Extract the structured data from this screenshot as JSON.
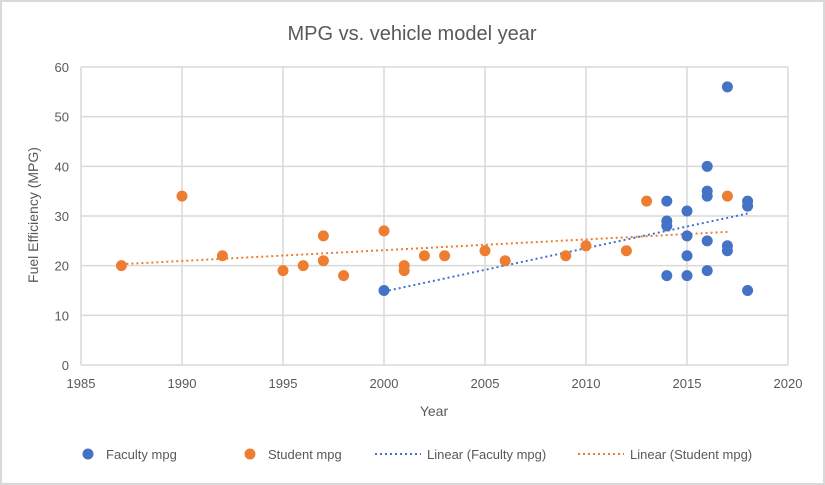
{
  "chart_data": {
    "type": "scatter",
    "title": "MPG vs. vehicle model year",
    "xlabel": "Year",
    "ylabel": "Fuel Efficiency (MPG)",
    "xlim": [
      1985,
      2020
    ],
    "ylim": [
      0,
      60
    ],
    "xticks": [
      1985,
      1990,
      1995,
      2000,
      2005,
      2010,
      2015,
      2020
    ],
    "yticks": [
      0,
      10,
      20,
      30,
      40,
      50,
      60
    ],
    "grid": true,
    "legend_position": "bottom",
    "colors": {
      "faculty": "#4472c4",
      "student": "#ed7d31",
      "grid": "#d9d9d9",
      "text": "#595959"
    },
    "series": [
      {
        "name": "Faculty mpg",
        "key": "faculty",
        "points": [
          [
            2000,
            15
          ],
          [
            2014,
            33
          ],
          [
            2014,
            29
          ],
          [
            2014,
            28
          ],
          [
            2014,
            18
          ],
          [
            2015,
            31
          ],
          [
            2015,
            26
          ],
          [
            2015,
            22
          ],
          [
            2015,
            18
          ],
          [
            2016,
            40
          ],
          [
            2016,
            35
          ],
          [
            2016,
            34
          ],
          [
            2016,
            25
          ],
          [
            2016,
            19
          ],
          [
            2017,
            56
          ],
          [
            2017,
            24
          ],
          [
            2017,
            23
          ],
          [
            2018,
            33
          ],
          [
            2018,
            32
          ],
          [
            2018,
            15
          ]
        ]
      },
      {
        "name": "Student mpg",
        "key": "student",
        "points": [
          [
            1987,
            20
          ],
          [
            1990,
            34
          ],
          [
            1992,
            22
          ],
          [
            1995,
            19
          ],
          [
            1996,
            20
          ],
          [
            1997,
            21
          ],
          [
            1997,
            26
          ],
          [
            1998,
            18
          ],
          [
            2000,
            27
          ],
          [
            2001,
            20
          ],
          [
            2001,
            19
          ],
          [
            2002,
            22
          ],
          [
            2003,
            22
          ],
          [
            2005,
            23
          ],
          [
            2006,
            21
          ],
          [
            2009,
            22
          ],
          [
            2010,
            24
          ],
          [
            2012,
            23
          ],
          [
            2013,
            33
          ],
          [
            2017,
            34
          ]
        ]
      }
    ],
    "trendlines": [
      {
        "name": "Linear (Faculty mpg)",
        "key": "faculty",
        "type": "linear",
        "from": [
          2000,
          14.8
        ],
        "to": [
          2018,
          30.5
        ]
      },
      {
        "name": "Linear (Student mpg)",
        "key": "student",
        "type": "linear",
        "from": [
          1987,
          20.3
        ],
        "to": [
          2017,
          26.8
        ]
      }
    ],
    "legend": [
      {
        "label": "Faculty mpg",
        "kind": "marker",
        "key": "faculty"
      },
      {
        "label": "Student mpg",
        "kind": "marker",
        "key": "student"
      },
      {
        "label": "Linear (Faculty mpg)",
        "kind": "dotted-line",
        "key": "faculty"
      },
      {
        "label": "Linear (Student mpg)",
        "kind": "dotted-line",
        "key": "student"
      }
    ]
  }
}
